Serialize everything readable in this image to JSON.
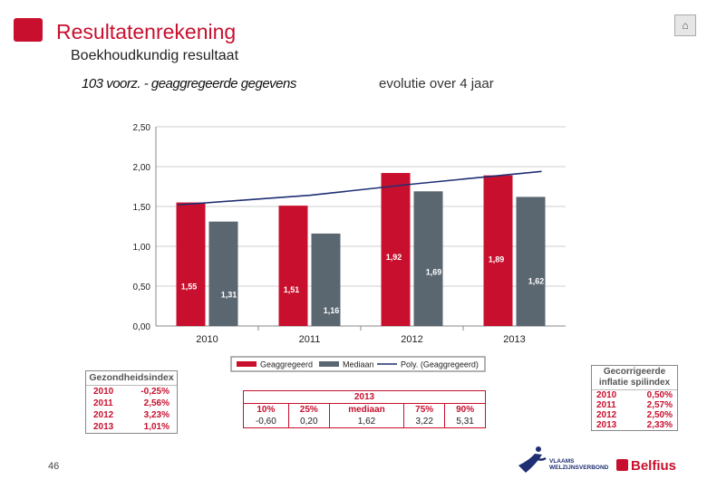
{
  "header": {
    "title": "Resultatenrekening",
    "subtitle": "Boekhoudkundig resultaat",
    "evolution_label": "evolutie over 4 jaar"
  },
  "chart_data": {
    "type": "bar",
    "title": "103 voorz. - geaggregeerde gegevens",
    "categories": [
      "2010",
      "2011",
      "2012",
      "2013"
    ],
    "series": [
      {
        "name": "Geaggregeerd",
        "color": "#c8102e",
        "values": [
          1.55,
          1.51,
          1.92,
          1.89
        ],
        "labels": [
          "1,55",
          "1,51",
          "1,92",
          "1,89"
        ]
      },
      {
        "name": "Mediaan",
        "color": "#5a6670",
        "values": [
          1.31,
          1.16,
          1.69,
          1.62
        ],
        "labels": [
          "1,31",
          "1,16",
          "1,69",
          "1,62"
        ]
      }
    ],
    "trendline": {
      "name": "Poly. (Geaggregeerd)",
      "values": [
        1.52,
        1.64,
        1.78,
        1.94
      ]
    },
    "yticks": [
      "0,00",
      "0,50",
      "1,00",
      "1,50",
      "2,00",
      "2,50"
    ],
    "ylim": [
      0,
      2.5
    ],
    "grid": true,
    "legend": "bottom"
  },
  "gezondheidsindex": {
    "title": "Gezondheidsindex",
    "rows": [
      {
        "year": "2010",
        "value": "-0,25%"
      },
      {
        "year": "2011",
        "value": "2,56%"
      },
      {
        "year": "2012",
        "value": "3,23%"
      },
      {
        "year": "2013",
        "value": "1,01%"
      }
    ]
  },
  "percentiles": {
    "year": "2013",
    "labels": [
      "10%",
      "25%",
      "mediaan",
      "75%",
      "90%"
    ],
    "values": [
      "-0,60",
      "0,20",
      "1,62",
      "3,22",
      "5,31"
    ]
  },
  "inflatie": {
    "title_line1": "Gecorrigeerde",
    "title_line2": "inflatie spilindex",
    "rows": [
      {
        "year": "2010",
        "value": "0,50%"
      },
      {
        "year": "2011",
        "value": "2,57%"
      },
      {
        "year": "2012",
        "value": "2,50%"
      },
      {
        "year": "2013",
        "value": "2,33%"
      }
    ]
  },
  "footer": {
    "page_number": "46",
    "vw_line1": "VLAAMS",
    "vw_line2": "WELZIJNSVERBOND",
    "belfius": "Belfius"
  }
}
